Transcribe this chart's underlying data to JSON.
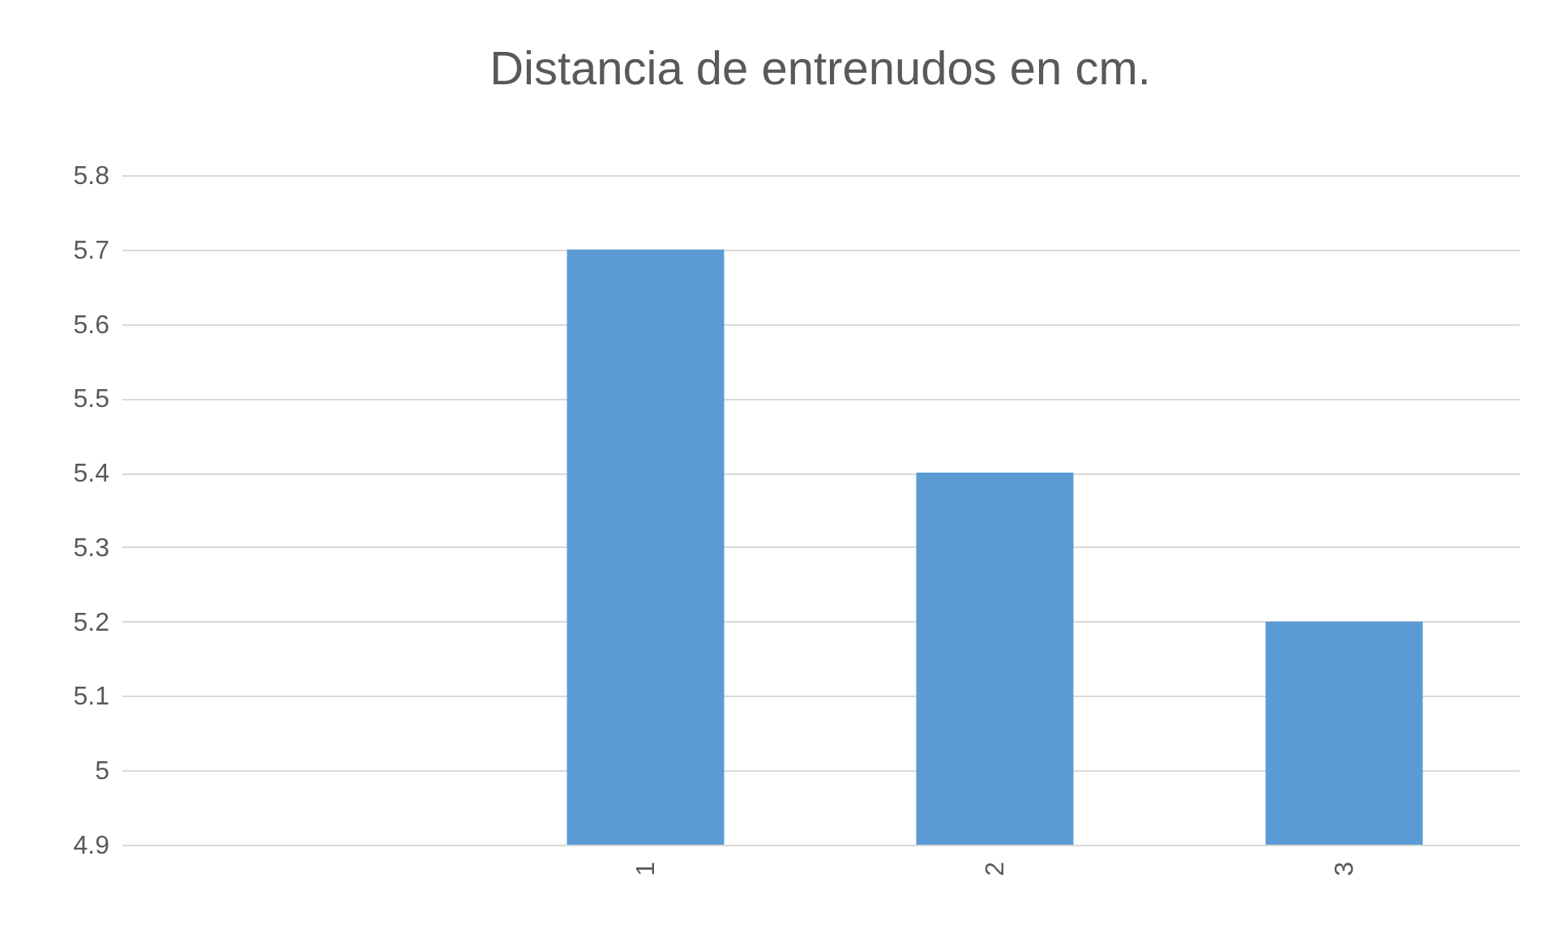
{
  "chart_data": {
    "type": "bar",
    "title": "Distancia de entrenudos en cm.",
    "categories": [
      null,
      "1",
      "2",
      "3"
    ],
    "values": [
      null,
      5.7,
      5.4,
      5.2
    ],
    "color": "#5b9bd5",
    "ylim": [
      4.9,
      5.8
    ],
    "yticks": [
      4.9,
      5,
      5.1,
      5.2,
      5.3,
      5.4,
      5.5,
      5.6,
      5.7,
      5.8
    ],
    "grid": "y"
  }
}
